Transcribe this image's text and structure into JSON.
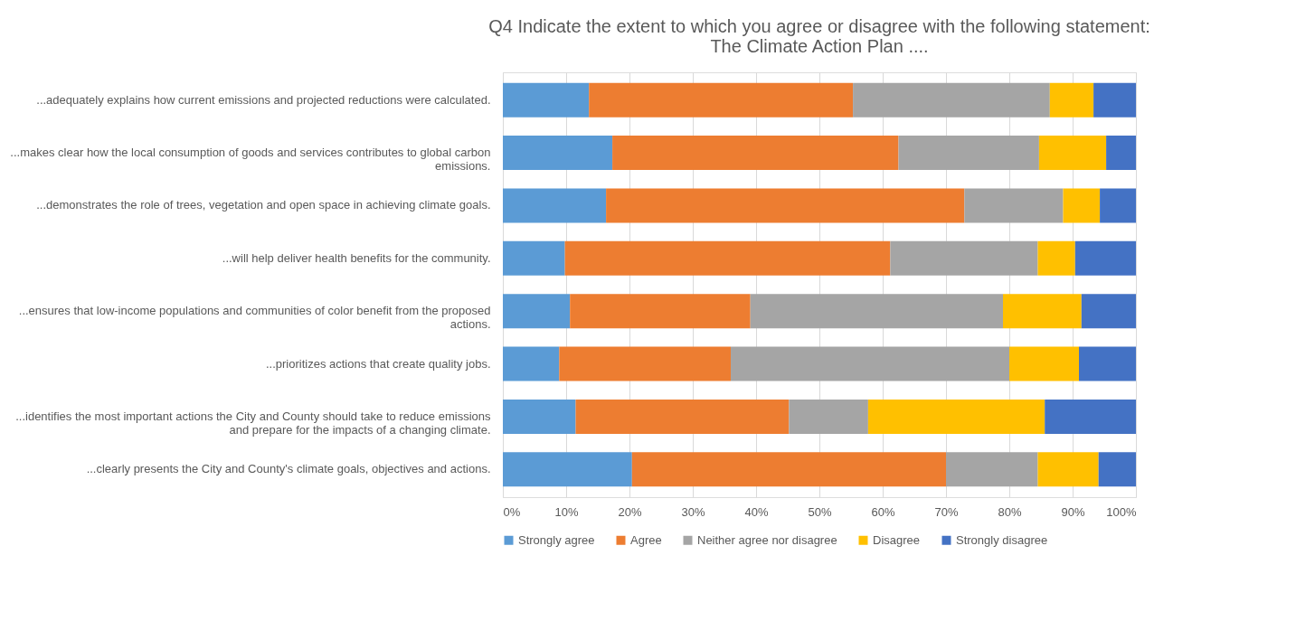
{
  "chart_data": {
    "type": "bar",
    "orientation": "horizontal",
    "stacked": true,
    "title": "Q4 Indicate the extent to which you agree or disagree with the following statement: The Climate Action Plan ....",
    "categories": [
      "...adequately explains how current emissions and projected reductions were calculated.",
      "...makes clear how the local consumption of goods and services contributes to global carbon emissions.",
      "...demonstrates the role of trees, vegetation and open space in achieving climate goals.",
      "...will help deliver health benefits for the community.",
      "...ensures that low-income populations and communities of color benefit from the proposed actions.",
      "...prioritizes actions that create quality jobs.",
      "...identifies the most important actions the City and County should take to reduce emissions and prepare for the impacts of a changing climate.",
      "...clearly presents the City and County's climate goals, objectives and actions."
    ],
    "series": [
      {
        "name": "Strongly agree",
        "color": "#5b9bd5",
        "values": [
          13.6,
          17.3,
          16.3,
          9.8,
          10.6,
          8.9,
          11.5,
          20.4
        ]
      },
      {
        "name": "Agree",
        "color": "#ed7d31",
        "values": [
          41.7,
          45.2,
          56.6,
          51.4,
          28.5,
          27.1,
          33.7,
          49.6
        ]
      },
      {
        "name": "Neither agree nor disagree",
        "color": "#a5a5a5",
        "values": [
          31.1,
          22.2,
          15.6,
          23.3,
          39.9,
          44.0,
          12.5,
          14.5
        ]
      },
      {
        "name": "Disagree",
        "color": "#ffc000",
        "values": [
          6.9,
          10.6,
          5.8,
          5.9,
          12.4,
          11.0,
          27.9,
          9.6
        ]
      },
      {
        "name": "Strongly disagree",
        "color": "#4472c4",
        "values": [
          6.7,
          4.7,
          5.7,
          9.6,
          8.6,
          9.0,
          14.4,
          5.9
        ]
      }
    ],
    "xlim": [
      0,
      100
    ],
    "xticks": [
      {
        "value": 0,
        "label": "0%"
      },
      {
        "value": 10,
        "label": "10%"
      },
      {
        "value": 20,
        "label": "20%"
      },
      {
        "value": 30,
        "label": "30%"
      },
      {
        "value": 40,
        "label": "40%"
      },
      {
        "value": 50,
        "label": "50%"
      },
      {
        "value": 60,
        "label": "60%"
      },
      {
        "value": 70,
        "label": "70%"
      },
      {
        "value": 80,
        "label": "80%"
      },
      {
        "value": 90,
        "label": "90%"
      },
      {
        "value": 100,
        "label": "100%"
      }
    ],
    "grid": "x",
    "legend": "bottom"
  }
}
